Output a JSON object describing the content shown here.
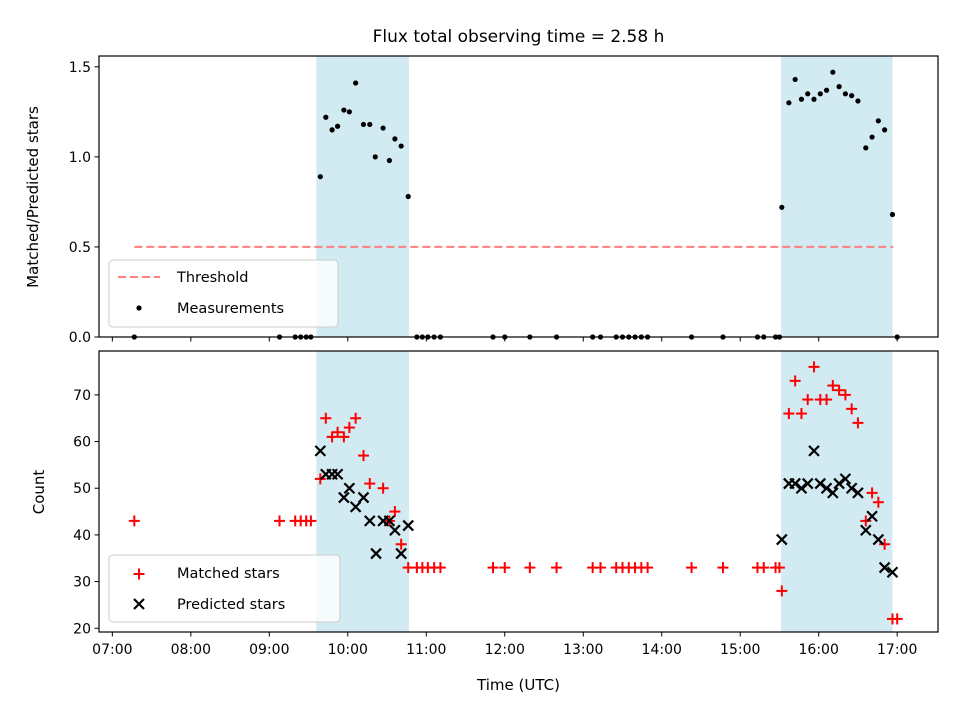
{
  "chart_data": {
    "title": "Flux total observing time = 2.58 h",
    "colors": {
      "shade": "#add8e6",
      "threshold": "#ff7f7f",
      "measurement": "#000000",
      "matched": "#ff0000",
      "predicted": "#000000"
    },
    "x": {
      "label": "Time (UTC)",
      "unit": "hours",
      "range": [
        6.83,
        17.52
      ],
      "ticks": [
        7,
        8,
        9,
        10,
        11,
        12,
        13,
        14,
        15,
        16,
        17
      ],
      "tick_labels": [
        "07:00",
        "08:00",
        "09:00",
        "10:00",
        "11:00",
        "12:00",
        "13:00",
        "14:00",
        "15:00",
        "16:00",
        "17:00"
      ]
    },
    "shaded_intervals": [
      [
        9.6,
        10.78
      ],
      [
        15.52,
        16.94
      ]
    ],
    "panels": [
      {
        "name": "ratio",
        "type": "scatter",
        "ylabel": "Matched/Predicted stars",
        "ylim": [
          0,
          1.56
        ],
        "yticks": [
          0.0,
          0.5,
          1.0,
          1.5
        ],
        "ytick_labels": [
          "0.0",
          "0.5",
          "1.0",
          "1.5"
        ],
        "legend": [
          "Threshold",
          "Measurements"
        ],
        "legend_position": "lower-left",
        "threshold": {
          "name": "Threshold",
          "y": 0.5,
          "x": [
            7.28,
            16.95
          ]
        },
        "series": [
          {
            "name": "Measurements",
            "marker": "dot",
            "points": [
              [
                7.28,
                0.0
              ],
              [
                9.13,
                0.0
              ],
              [
                9.33,
                0.0
              ],
              [
                9.4,
                0.0
              ],
              [
                9.47,
                0.0
              ],
              [
                9.53,
                0.0
              ],
              [
                9.65,
                0.89
              ],
              [
                9.72,
                1.22
              ],
              [
                9.8,
                1.15
              ],
              [
                9.87,
                1.17
              ],
              [
                9.95,
                1.26
              ],
              [
                10.02,
                1.25
              ],
              [
                10.1,
                1.41
              ],
              [
                10.2,
                1.18
              ],
              [
                10.28,
                1.18
              ],
              [
                10.35,
                1.0
              ],
              [
                10.45,
                1.16
              ],
              [
                10.53,
                0.98
              ],
              [
                10.6,
                1.1
              ],
              [
                10.68,
                1.06
              ],
              [
                10.77,
                0.78
              ],
              [
                10.88,
                0.0
              ],
              [
                10.95,
                0.0
              ],
              [
                11.02,
                0.0
              ],
              [
                11.1,
                0.0
              ],
              [
                11.18,
                0.0
              ],
              [
                11.85,
                0.0
              ],
              [
                12.0,
                0.0
              ],
              [
                12.32,
                0.0
              ],
              [
                12.66,
                0.0
              ],
              [
                13.12,
                0.0
              ],
              [
                13.22,
                0.0
              ],
              [
                13.42,
                0.0
              ],
              [
                13.5,
                0.0
              ],
              [
                13.58,
                0.0
              ],
              [
                13.66,
                0.0
              ],
              [
                13.74,
                0.0
              ],
              [
                13.82,
                0.0
              ],
              [
                14.38,
                0.0
              ],
              [
                14.78,
                0.0
              ],
              [
                15.22,
                0.0
              ],
              [
                15.3,
                0.0
              ],
              [
                15.45,
                0.0
              ],
              [
                15.5,
                0.0
              ],
              [
                15.53,
                0.72
              ],
              [
                15.62,
                1.3
              ],
              [
                15.7,
                1.43
              ],
              [
                15.78,
                1.32
              ],
              [
                15.86,
                1.35
              ],
              [
                15.94,
                1.32
              ],
              [
                16.02,
                1.35
              ],
              [
                16.1,
                1.37
              ],
              [
                16.18,
                1.47
              ],
              [
                16.26,
                1.39
              ],
              [
                16.34,
                1.35
              ],
              [
                16.42,
                1.34
              ],
              [
                16.5,
                1.31
              ],
              [
                16.6,
                1.05
              ],
              [
                16.68,
                1.11
              ],
              [
                16.76,
                1.2
              ],
              [
                16.84,
                1.15
              ],
              [
                16.94,
                0.68
              ],
              [
                17.0,
                0.0
              ]
            ]
          }
        ]
      },
      {
        "name": "counts",
        "type": "scatter",
        "ylabel": "Count",
        "ylim": [
          19.2,
          79.4
        ],
        "yticks": [
          20,
          30,
          40,
          50,
          60,
          70
        ],
        "ytick_labels": [
          "20",
          "30",
          "40",
          "50",
          "60",
          "70"
        ],
        "legend": [
          "Matched stars",
          "Predicted stars"
        ],
        "legend_position": "lower-left",
        "series": [
          {
            "name": "Matched stars",
            "marker": "plus",
            "points": [
              [
                7.28,
                43
              ],
              [
                9.13,
                43
              ],
              [
                9.33,
                43
              ],
              [
                9.4,
                43
              ],
              [
                9.47,
                43
              ],
              [
                9.53,
                43
              ],
              [
                9.65,
                52
              ],
              [
                9.72,
                65
              ],
              [
                9.8,
                61
              ],
              [
                9.87,
                62
              ],
              [
                9.95,
                61
              ],
              [
                10.02,
                63
              ],
              [
                10.1,
                65
              ],
              [
                10.2,
                57
              ],
              [
                10.28,
                51
              ],
              [
                10.45,
                50
              ],
              [
                10.53,
                43
              ],
              [
                10.6,
                45
              ],
              [
                10.68,
                38
              ],
              [
                10.77,
                33
              ],
              [
                10.88,
                33
              ],
              [
                10.95,
                33
              ],
              [
                11.02,
                33
              ],
              [
                11.1,
                33
              ],
              [
                11.18,
                33
              ],
              [
                11.85,
                33
              ],
              [
                12.0,
                33
              ],
              [
                12.32,
                33
              ],
              [
                12.66,
                33
              ],
              [
                13.12,
                33
              ],
              [
                13.22,
                33
              ],
              [
                13.42,
                33
              ],
              [
                13.5,
                33
              ],
              [
                13.58,
                33
              ],
              [
                13.66,
                33
              ],
              [
                13.74,
                33
              ],
              [
                13.82,
                33
              ],
              [
                14.38,
                33
              ],
              [
                14.78,
                33
              ],
              [
                15.22,
                33
              ],
              [
                15.3,
                33
              ],
              [
                15.45,
                33
              ],
              [
                15.5,
                33
              ],
              [
                15.53,
                28
              ],
              [
                15.62,
                66
              ],
              [
                15.7,
                73
              ],
              [
                15.78,
                66
              ],
              [
                15.86,
                69
              ],
              [
                15.94,
                76
              ],
              [
                16.02,
                69
              ],
              [
                16.1,
                69
              ],
              [
                16.18,
                72
              ],
              [
                16.26,
                71
              ],
              [
                16.34,
                70
              ],
              [
                16.42,
                67
              ],
              [
                16.5,
                64
              ],
              [
                16.6,
                43
              ],
              [
                16.68,
                49
              ],
              [
                16.76,
                47
              ],
              [
                16.84,
                38
              ],
              [
                16.94,
                22
              ],
              [
                17.0,
                22
              ]
            ]
          },
          {
            "name": "Predicted stars",
            "marker": "x",
            "points": [
              [
                9.65,
                58
              ],
              [
                9.72,
                53
              ],
              [
                9.8,
                53
              ],
              [
                9.87,
                53
              ],
              [
                9.95,
                48
              ],
              [
                10.02,
                50
              ],
              [
                10.1,
                46
              ],
              [
                10.2,
                48
              ],
              [
                10.28,
                43
              ],
              [
                10.36,
                36
              ],
              [
                10.45,
                43
              ],
              [
                10.53,
                43
              ],
              [
                10.6,
                41
              ],
              [
                10.68,
                36
              ],
              [
                10.77,
                42
              ],
              [
                15.53,
                39
              ],
              [
                15.62,
                51
              ],
              [
                15.7,
                51
              ],
              [
                15.78,
                50
              ],
              [
                15.86,
                51
              ],
              [
                15.94,
                58
              ],
              [
                16.02,
                51
              ],
              [
                16.1,
                50
              ],
              [
                16.18,
                49
              ],
              [
                16.26,
                51
              ],
              [
                16.34,
                52
              ],
              [
                16.42,
                50
              ],
              [
                16.5,
                49
              ],
              [
                16.6,
                41
              ],
              [
                16.68,
                44
              ],
              [
                16.76,
                39
              ],
              [
                16.84,
                33
              ],
              [
                16.94,
                32
              ]
            ]
          }
        ]
      }
    ]
  }
}
